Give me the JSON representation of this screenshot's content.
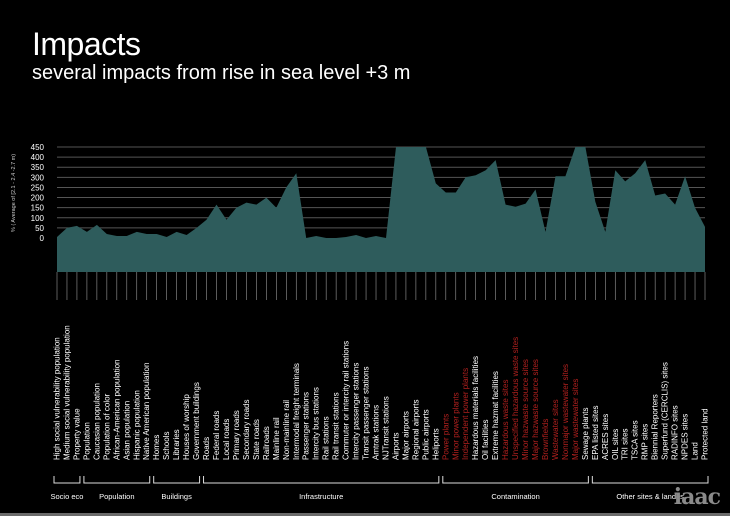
{
  "title": "Impacts",
  "subtitle": "several impacts from rise in sea level +3 m",
  "logo": "iaac",
  "colors": {
    "fill": "#2e5c5c",
    "grid": "#555555",
    "text": "#ffffff",
    "red_label": "#b0201e",
    "ticks": "#9a9a9a"
  },
  "chart_data": {
    "type": "area",
    "ylabel": "% ( Average of [2.1 - 2.4 -2.7 m)",
    "ylim": [
      0,
      450
    ],
    "yticks": [
      "0",
      "50",
      "100",
      "150",
      "200",
      "250",
      "300",
      "350",
      "400",
      "450"
    ],
    "grid": true,
    "categories": [
      {
        "label": "High social vulnerability population",
        "red": false
      },
      {
        "label": "Medium social vulnerability population",
        "red": false
      },
      {
        "label": "Property value",
        "red": false
      },
      {
        "label": "Population",
        "red": false
      },
      {
        "label": "Caucasian population",
        "red": false
      },
      {
        "label": "Population of color",
        "red": false
      },
      {
        "label": "African-American population",
        "red": false
      },
      {
        "label": "Asian population",
        "red": false
      },
      {
        "label": "Hispanic population",
        "red": false
      },
      {
        "label": "Native American population",
        "red": false
      },
      {
        "label": "Homes",
        "red": false
      },
      {
        "label": "Schools",
        "red": false
      },
      {
        "label": "Libraries",
        "red": false
      },
      {
        "label": "Houses of worship",
        "red": false
      },
      {
        "label": "Government buildings",
        "red": false
      },
      {
        "label": "Roads",
        "red": false
      },
      {
        "label": "Federal roads",
        "red": false
      },
      {
        "label": "Local roads",
        "red": false
      },
      {
        "label": "Primary roads",
        "red": false
      },
      {
        "label": "Secondary roads",
        "red": false
      },
      {
        "label": "State roads",
        "red": false
      },
      {
        "label": "Railroads",
        "red": false
      },
      {
        "label": "Mainline rail",
        "red": false
      },
      {
        "label": "Non-mainline rail",
        "red": false
      },
      {
        "label": "Intermodal freight terminals",
        "red": false
      },
      {
        "label": "Passenger stations",
        "red": false
      },
      {
        "label": "Intercity bus stations",
        "red": false
      },
      {
        "label": "Rail stations",
        "red": false
      },
      {
        "label": "Rail transit stations",
        "red": false
      },
      {
        "label": "Commuter or intercity rail stations",
        "red": false
      },
      {
        "label": "Intercity passenger stations",
        "red": false
      },
      {
        "label": "Transit passenger stations",
        "red": false
      },
      {
        "label": "Amtrak stations",
        "red": false
      },
      {
        "label": "NJTransit stations",
        "red": false
      },
      {
        "label": "Airports",
        "red": false
      },
      {
        "label": "Major airports",
        "red": false
      },
      {
        "label": "Regional airports",
        "red": false
      },
      {
        "label": "Public airports",
        "red": false
      },
      {
        "label": "Heliports",
        "red": false
      },
      {
        "label": "Power plants",
        "red": true
      },
      {
        "label": "Minor power plants",
        "red": true
      },
      {
        "label": "Independent power plants",
        "red": true
      },
      {
        "label": "Hazardous materials facilities",
        "red": false
      },
      {
        "label": "Oil facilities",
        "red": false
      },
      {
        "label": "Extreme hazmat facilities",
        "red": false
      },
      {
        "label": "Hazardous waste sites",
        "red": true
      },
      {
        "label": "Unspecified hazardous waste sites",
        "red": true
      },
      {
        "label": "Minor hazwaste source sites",
        "red": true
      },
      {
        "label": "Major hazwaste source sites",
        "red": true
      },
      {
        "label": "Brownfields",
        "red": true
      },
      {
        "label": "Wastewater sites",
        "red": true
      },
      {
        "label": "Nonmajor wastewater sites",
        "red": true
      },
      {
        "label": "Major wastewater sites",
        "red": true
      },
      {
        "label": "Sewage plants",
        "red": false
      },
      {
        "label": "EPA listed sites",
        "red": false
      },
      {
        "label": "ACRES sites",
        "red": false
      },
      {
        "label": "OIL sites",
        "red": false
      },
      {
        "label": "TRI sites",
        "red": false
      },
      {
        "label": "TSCA sites",
        "red": false
      },
      {
        "label": "RMP sites",
        "red": false
      },
      {
        "label": "Biennial Reporters",
        "red": false
      },
      {
        "label": "Superfund (CERCLIS) sites",
        "red": false
      },
      {
        "label": "RADINFO sites",
        "red": false
      },
      {
        "label": "NPDES sites",
        "red": false
      },
      {
        "label": "Land",
        "red": false
      },
      {
        "label": "Protected land",
        "red": false
      }
    ],
    "values": [
      5,
      50,
      60,
      30,
      65,
      20,
      10,
      10,
      30,
      20,
      20,
      5,
      30,
      15,
      50,
      90,
      165,
      90,
      150,
      175,
      165,
      200,
      150,
      250,
      320,
      0,
      10,
      0,
      0,
      5,
      15,
      0,
      10,
      0,
      450,
      450,
      450,
      450,
      270,
      225,
      225,
      300,
      310,
      335,
      385,
      165,
      155,
      170,
      240,
      30,
      305,
      305,
      450,
      450,
      180,
      30,
      335,
      280,
      320,
      385,
      210,
      220,
      165,
      305,
      150,
      55
    ],
    "groups": [
      {
        "label": "Socio eco",
        "start": 0,
        "end": 2
      },
      {
        "label": "Population",
        "start": 3,
        "end": 9
      },
      {
        "label": "Buildings",
        "start": 10,
        "end": 14
      },
      {
        "label": "Infrastructure",
        "start": 15,
        "end": 38
      },
      {
        "label": "Contamination",
        "start": 39,
        "end": 53
      },
      {
        "label": "Other sites & landes",
        "start": 54,
        "end": 65
      }
    ]
  }
}
